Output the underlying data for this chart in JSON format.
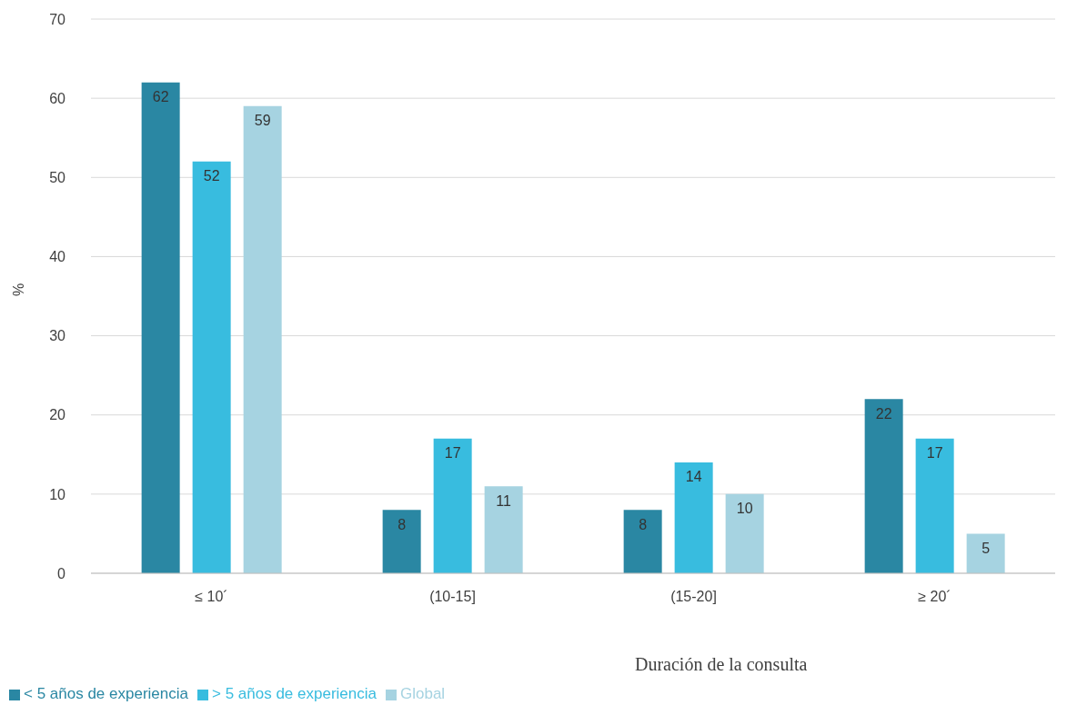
{
  "chart_data": {
    "type": "bar",
    "xlabel": "Duración de la consulta",
    "ylabel": "%",
    "categories": [
      "≤ 10´",
      "(10-15]",
      "(15-20]",
      "≥ 20´"
    ],
    "series": [
      {
        "name": "< 5 años de experiencia",
        "color": "#2a87a3",
        "values": [
          62,
          8,
          8,
          22
        ]
      },
      {
        "name": "> 5 años de experiencia",
        "color": "#38bcdf",
        "values": [
          52,
          17,
          14,
          17
        ]
      },
      {
        "name": "Global",
        "color": "#a6d3e1",
        "values": [
          59,
          11,
          10,
          5
        ]
      }
    ],
    "ylim": [
      0,
      70
    ],
    "yticks": [
      0,
      10,
      20,
      30,
      40,
      50,
      60,
      70
    ],
    "grid": "y",
    "legend": "bottom left",
    "data_labels": true
  }
}
